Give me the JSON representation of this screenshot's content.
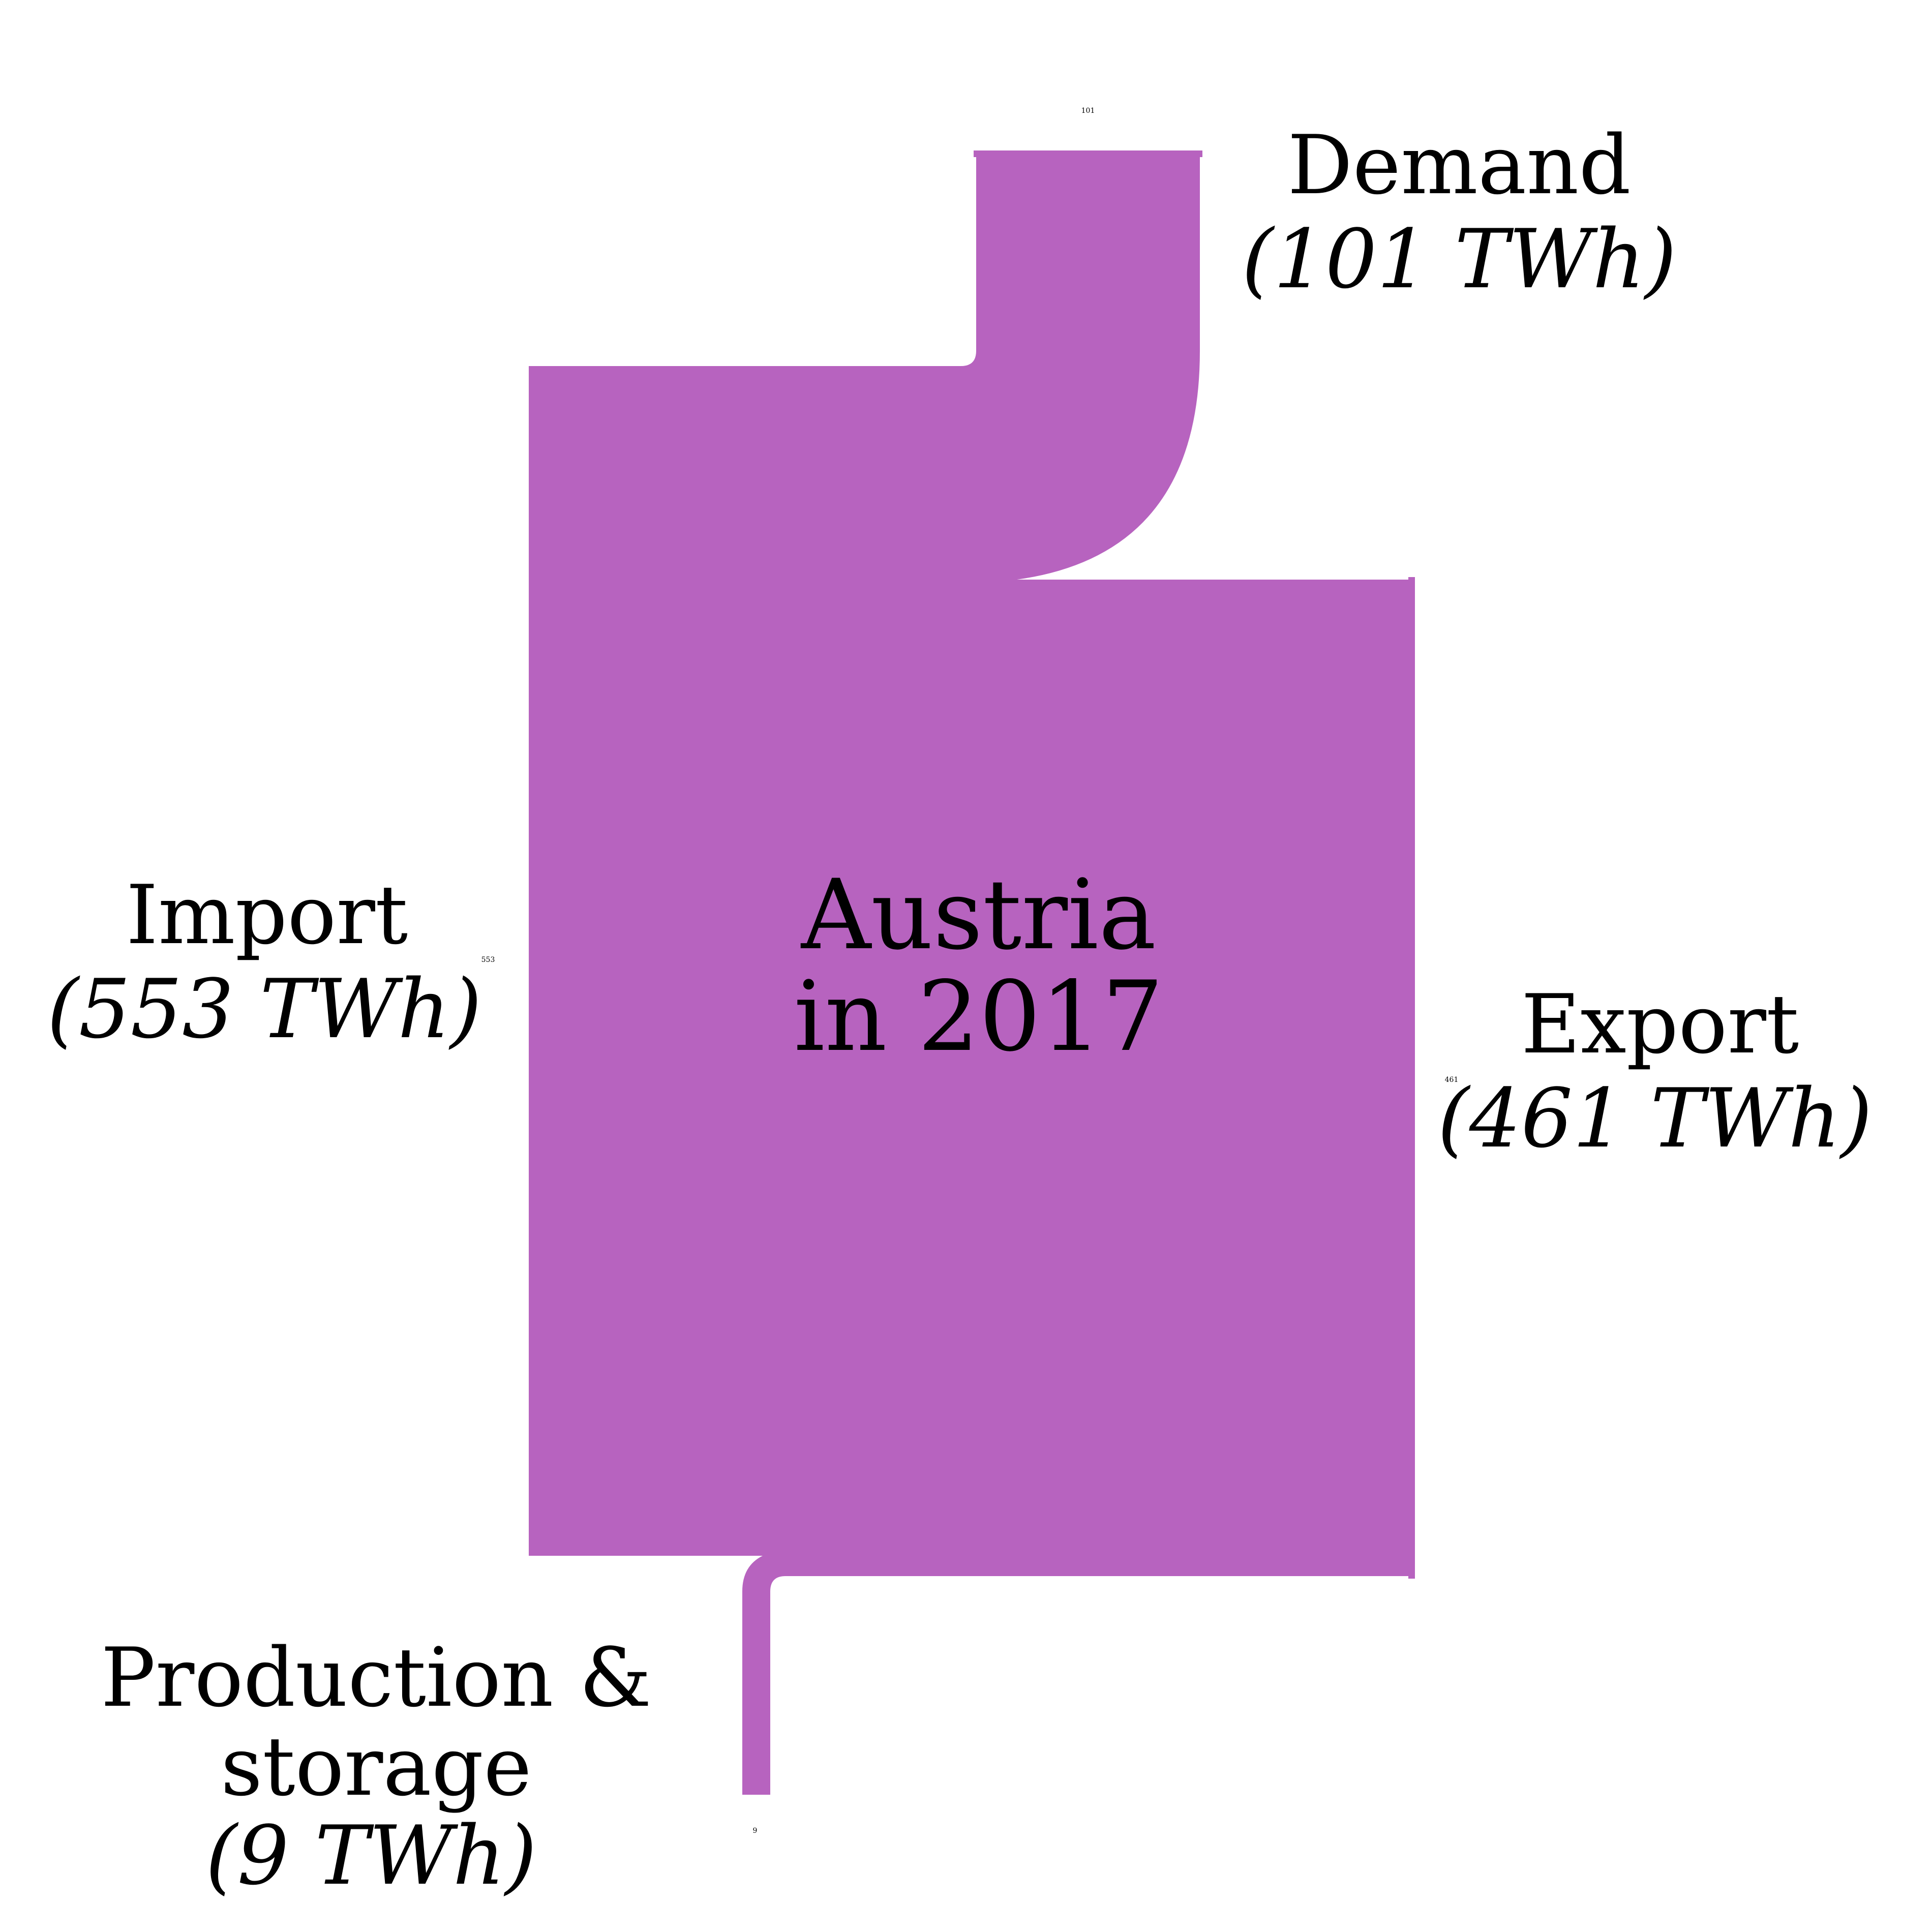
{
  "title": {
    "line1": "Austria",
    "line2": "in 2017"
  },
  "colors": {
    "flow": "#b763bf",
    "background": "#ffffff",
    "text": "#000000"
  },
  "unit": "TWh",
  "flows": [
    {
      "id": "import",
      "label_lines": [
        "Import"
      ],
      "value": 553,
      "value_text": "(553 TWh)",
      "tick": "553"
    },
    {
      "id": "demand",
      "label_lines": [
        "Demand"
      ],
      "value": 101,
      "value_text": "(101 TWh)",
      "tick": "101"
    },
    {
      "id": "export",
      "label_lines": [
        "Export"
      ],
      "value": 461,
      "value_text": "(461 TWh)",
      "tick": "461"
    },
    {
      "id": "production",
      "label_lines": [
        "Production &",
        "storage"
      ],
      "value": 9,
      "value_text": "(9 TWh)",
      "tick": "9"
    }
  ]
}
